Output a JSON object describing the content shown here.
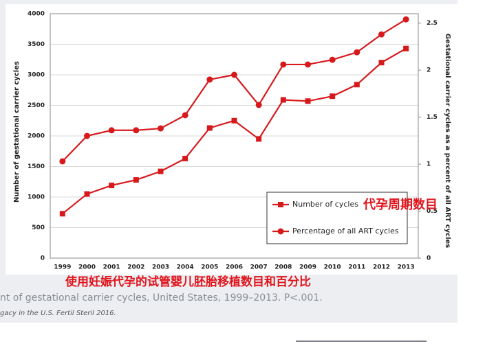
{
  "chart_data": {
    "type": "line",
    "x": [
      "1999",
      "2000",
      "2001",
      "2002",
      "2003",
      "2004",
      "2005",
      "2006",
      "2007",
      "2008",
      "2009",
      "2010",
      "2011",
      "2012",
      "2013"
    ],
    "y_label": "Number of gestational carrier cycles",
    "y2_label": "Gestational carrier cycles as a percent of all ART cycles",
    "ylim": [
      0,
      4000
    ],
    "yticks": [
      0,
      500,
      1000,
      1500,
      2000,
      2500,
      3000,
      3500,
      4000
    ],
    "y2lim": [
      0,
      2.6
    ],
    "y2ticks": [
      0,
      0.5,
      1,
      1.5,
      2,
      2.5
    ],
    "grid": true,
    "legend": "lower right",
    "series": [
      {
        "name": "Number of cycles",
        "color": "#d7191c",
        "marker": "square",
        "values": [
          727,
          1050,
          1190,
          1280,
          1420,
          1630,
          2130,
          2250,
          1950,
          2590,
          2570,
          2650,
          2840,
          3200,
          3430
        ]
      },
      {
        "name": "Percentage of all ART cycles",
        "color": "#d7191c",
        "marker": "circle",
        "axis": "y2",
        "values": [
          1.03,
          1.3,
          1.36,
          1.36,
          1.38,
          1.52,
          1.9,
          1.95,
          1.63,
          2.06,
          2.06,
          2.11,
          2.19,
          2.38,
          2.54
        ]
      }
    ],
    "annotations": [
      "代孕周期数目",
      "使用妊娠代孕的试管婴儿胚胎移植数目和百分比"
    ]
  },
  "caption": [
    "nt of gestational carrier cycles, United States, 1999–2013. P<.001.",
    "gacy in the U.S. Fertil Steril 2016."
  ]
}
